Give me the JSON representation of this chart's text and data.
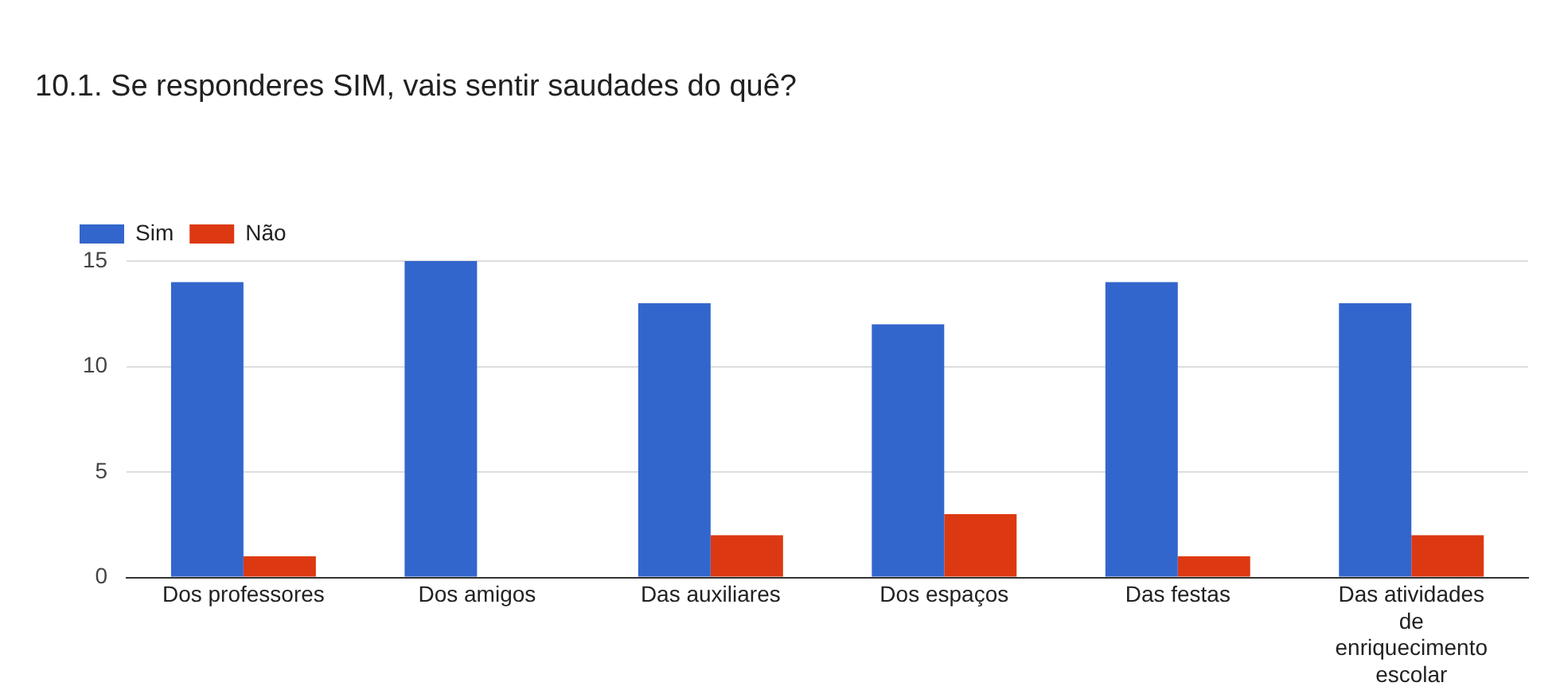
{
  "chart_data": {
    "type": "bar",
    "title": "10.1. Se responderes SIM, vais sentir saudades do quê?",
    "categories": [
      "Dos professores",
      "Dos amigos",
      "Das auxiliares",
      "Dos espaços",
      "Das festas",
      "Das atividades de enriquecimento escolar"
    ],
    "series": [
      {
        "name": "Sim",
        "color": "#3366cc",
        "values": [
          14,
          15,
          13,
          12,
          14,
          13
        ]
      },
      {
        "name": "Não",
        "color": "#dc3912",
        "values": [
          1,
          0,
          2,
          3,
          1,
          2
        ]
      }
    ],
    "ylim": [
      0,
      15
    ],
    "yticks": [
      0,
      5,
      10,
      15
    ],
    "grid": "y",
    "legend": "top left"
  }
}
